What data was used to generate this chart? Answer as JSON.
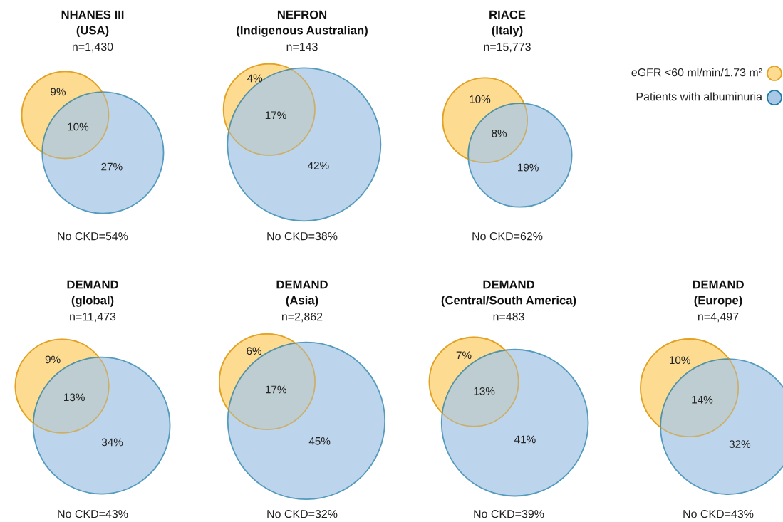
{
  "chart_data": [
    {
      "type": "other",
      "title": "NHANES III",
      "subtitle": "(USA)",
      "annotations": [
        "n=1,430",
        "No CKD=54%"
      ],
      "values": [
        9,
        10,
        27
      ],
      "value_labels": [
        "9%",
        "10%",
        "27%"
      ],
      "colors": [
        "#fddc92",
        null,
        "#a8c8e6"
      ]
    },
    {
      "type": "other",
      "title": "NEFRON",
      "subtitle": "(Indigenous Australian)",
      "annotations": [
        "n=143",
        "No CKD=38%"
      ],
      "values": [
        4,
        17,
        42
      ],
      "value_labels": [
        "4%",
        "17%",
        "42%"
      ],
      "colors": [
        "#fddc92",
        null,
        "#a8c8e6"
      ]
    },
    {
      "type": "other",
      "title": "RIACE",
      "subtitle": "(Italy)",
      "annotations": [
        "n=15,773",
        "No CKD=62%"
      ],
      "values": [
        10,
        8,
        19
      ],
      "value_labels": [
        "10%",
        "8%",
        "19%"
      ],
      "colors": [
        "#fddc92",
        null,
        "#a8c8e6"
      ]
    },
    {
      "type": "other",
      "series": [
        {
          "name": "eGFR <60 ml/min/1.73 m²",
          "color": "#fddc92"
        },
        {
          "name": "Patients with albuminuria",
          "color": "#a8c8e6"
        }
      ],
      "legend": "right"
    },
    {
      "type": "other",
      "title": "DEMAND",
      "subtitle": "(global)",
      "annotations": [
        "n=11,473",
        "No CKD=43%"
      ],
      "values": [
        9,
        13,
        34
      ],
      "value_labels": [
        "9%",
        "13%",
        "34%"
      ],
      "colors": [
        "#fddc92",
        null,
        "#a8c8e6"
      ]
    },
    {
      "type": "other",
      "title": "DEMAND",
      "subtitle": "(Asia)",
      "annotations": [
        "n=2,862",
        "No CKD=32%"
      ],
      "values": [
        6,
        17,
        45
      ],
      "value_labels": [
        "6%",
        "17%",
        "45%"
      ],
      "colors": [
        "#fddc92",
        null,
        "#a8c8e6"
      ]
    },
    {
      "type": "other",
      "title": "DEMAND",
      "subtitle": "(Central/South America)",
      "annotations": [
        "n=483",
        "No CKD=39%"
      ],
      "values": [
        7,
        13,
        41
      ],
      "value_labels": [
        "7%",
        "13%",
        "41%"
      ],
      "colors": [
        "#fddc92",
        null,
        "#a8c8e6"
      ]
    },
    {
      "type": "other",
      "title": "DEMAND",
      "subtitle": "(Europe)",
      "annotations": [
        "n=4,497",
        "No CKD=43%"
      ],
      "values": [
        10,
        14,
        32
      ],
      "value_labels": [
        "10%",
        "14%",
        "32%"
      ],
      "colors": [
        "#fddc92",
        null,
        "#a8c8e6"
      ]
    }
  ]
}
